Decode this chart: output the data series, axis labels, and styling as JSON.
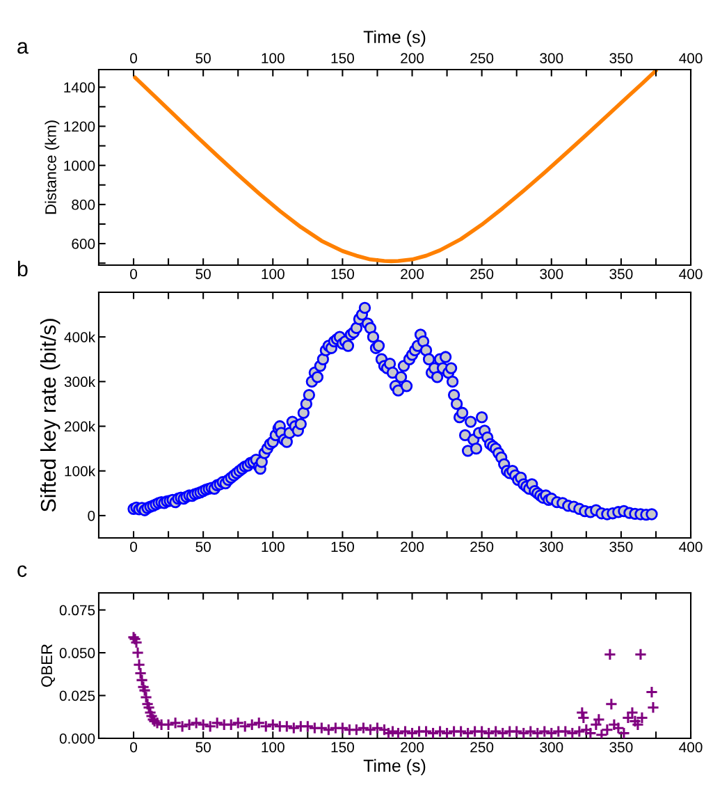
{
  "chart_data": [
    {
      "type": "line",
      "x2label": "Time (s)",
      "ylabel": "Distance (km)",
      "annotations": [
        "a"
      ],
      "xlim": [
        -25,
        400
      ],
      "xticks": [
        0,
        {
          "value": 25,
          "label": null
        },
        50,
        {
          "value": 75,
          "label": null
        },
        100,
        {
          "value": 125,
          "label": null
        },
        150,
        {
          "value": 175,
          "label": null
        },
        200,
        {
          "value": 225,
          "label": null
        },
        250,
        {
          "value": 275,
          "label": null
        },
        300,
        {
          "value": 325,
          "label": null
        },
        350,
        {
          "value": 375,
          "label": null
        },
        400
      ],
      "x2lim": [
        -25,
        400
      ],
      "x2ticks": [
        0,
        {
          "value": 25,
          "label": null
        },
        50,
        {
          "value": 75,
          "label": null
        },
        100,
        {
          "value": 125,
          "label": null
        },
        150,
        {
          "value": 175,
          "label": null
        },
        200,
        {
          "value": 225,
          "label": null
        },
        250,
        {
          "value": 275,
          "label": null
        },
        300,
        {
          "value": 325,
          "label": null
        },
        350,
        {
          "value": 375,
          "label": null
        },
        400
      ],
      "ylim": [
        490,
        1490
      ],
      "yticks": [
        {
          "value": 500,
          "label": null
        },
        600,
        {
          "value": 700,
          "label": null
        },
        800,
        {
          "value": 900,
          "label": null
        },
        1000,
        {
          "value": 1100,
          "label": null
        },
        1200,
        {
          "value": 1300,
          "label": null
        },
        1400
      ],
      "grid": false,
      "marker": "none",
      "line_style": "solid",
      "series": [
        {
          "color": "#ff8000",
          "x": [
            1,
            15,
            30,
            45,
            60,
            75,
            90,
            105,
            120,
            135,
            150,
            160,
            170,
            180,
            185,
            190,
            200,
            210,
            220,
            235,
            250,
            265,
            280,
            295,
            310,
            325,
            340,
            355,
            365,
            375
          ],
          "values": [
            1450,
            1355,
            1252,
            1150,
            1050,
            952,
            857,
            767,
            685,
            614,
            562,
            538,
            519,
            511,
            510,
            511,
            519,
            538,
            566,
            623,
            697,
            781,
            870,
            963,
            1059,
            1156,
            1254,
            1353,
            1418,
            1485
          ]
        }
      ]
    },
    {
      "type": "scatter",
      "ylabel": "Sifted key rate (bit/s)",
      "annotations": [
        "b"
      ],
      "xlim": [
        -25,
        400
      ],
      "xticks": [
        0,
        {
          "value": 25,
          "label": null
        },
        50,
        {
          "value": 75,
          "label": null
        },
        100,
        {
          "value": 125,
          "label": null
        },
        150,
        {
          "value": 175,
          "label": null
        },
        200,
        {
          "value": 225,
          "label": null
        },
        250,
        {
          "value": 275,
          "label": null
        },
        300,
        {
          "value": 325,
          "label": null
        },
        350,
        {
          "value": 375,
          "label": null
        },
        400
      ],
      "ylim": [
        -50000,
        500000
      ],
      "yticks": [
        {
          "value": 0,
          "label": "0"
        },
        {
          "value": 100000,
          "label": "100k"
        },
        {
          "value": 200000,
          "label": "200k"
        },
        {
          "value": 300000,
          "label": "300k"
        },
        {
          "value": 400000,
          "label": "400k"
        }
      ],
      "grid": false,
      "marker": "circle",
      "series": [
        {
          "color": "#0000ff",
          "x": [
            0,
            2,
            4,
            6,
            8,
            10,
            12,
            14,
            16,
            18,
            20,
            22,
            24,
            26,
            28,
            30,
            32,
            34,
            36,
            38,
            40,
            42,
            44,
            46,
            48,
            50,
            52,
            54,
            56,
            58,
            60,
            62,
            64,
            66,
            68,
            70,
            72,
            74,
            76,
            78,
            80,
            82,
            84,
            86,
            88,
            90,
            91,
            92,
            94,
            96,
            98,
            100,
            102,
            104,
            105,
            106,
            108,
            110,
            112,
            114,
            116,
            118,
            120,
            122,
            124,
            126,
            128,
            130,
            132,
            134,
            136,
            138,
            140,
            142,
            144,
            146,
            148,
            150,
            152,
            154,
            156,
            158,
            160,
            162,
            164,
            166,
            168,
            170,
            172,
            174,
            176,
            178,
            180,
            182,
            184,
            186,
            188,
            190,
            192,
            194,
            196,
            198,
            200,
            202,
            204,
            206,
            208,
            210,
            212,
            214,
            216,
            218,
            220,
            222,
            224,
            226,
            228,
            229,
            230,
            232,
            234,
            236,
            238,
            240,
            242,
            244,
            246,
            248,
            250,
            252,
            254,
            256,
            258,
            260,
            262,
            264,
            266,
            268,
            270,
            272,
            274,
            276,
            278,
            280,
            282,
            284,
            286,
            288,
            290,
            292,
            294,
            296,
            298,
            300,
            304,
            308,
            312,
            316,
            320,
            324,
            328,
            332,
            336,
            340,
            344,
            348,
            352,
            356,
            360,
            364,
            368,
            372
          ],
          "values": [
            15000,
            18000,
            14000,
            17000,
            12000,
            17000,
            20000,
            22000,
            25000,
            28000,
            30000,
            28000,
            32000,
            33000,
            35000,
            30000,
            38000,
            40000,
            38000,
            42000,
            45000,
            44000,
            48000,
            50000,
            52000,
            55000,
            58000,
            60000,
            62000,
            60000,
            68000,
            70000,
            75000,
            72000,
            80000,
            85000,
            90000,
            95000,
            100000,
            105000,
            110000,
            112000,
            118000,
            120000,
            125000,
            110000,
            105000,
            120000,
            140000,
            150000,
            160000,
            165000,
            180000,
            195000,
            200000,
            185000,
            170000,
            165000,
            185000,
            210000,
            200000,
            190000,
            205000,
            230000,
            250000,
            270000,
            300000,
            320000,
            310000,
            335000,
            350000,
            370000,
            380000,
            375000,
            390000,
            395000,
            400000,
            385000,
            390000,
            380000,
            405000,
            410000,
            420000,
            440000,
            450000,
            465000,
            430000,
            420000,
            400000,
            375000,
            380000,
            350000,
            335000,
            330000,
            340000,
            320000,
            290000,
            280000,
            310000,
            335000,
            290000,
            350000,
            360000,
            370000,
            380000,
            405000,
            390000,
            370000,
            350000,
            320000,
            330000,
            310000,
            350000,
            330000,
            355000,
            320000,
            330000,
            300000,
            270000,
            250000,
            220000,
            230000,
            180000,
            145000,
            210000,
            170000,
            150000,
            185000,
            220000,
            190000,
            175000,
            160000,
            155000,
            150000,
            140000,
            130000,
            115000,
            100000,
            95000,
            100000,
            90000,
            80000,
            85000,
            70000,
            65000,
            60000,
            70000,
            55000,
            50000,
            45000,
            40000,
            45000,
            35000,
            38000,
            30000,
            28000,
            22000,
            20000,
            15000,
            10000,
            8000,
            12000,
            5000,
            3000,
            5000,
            8000,
            10000,
            6000,
            4000,
            3000,
            2000,
            3000
          ]
        }
      ]
    },
    {
      "type": "scatter",
      "xlabel": "Time (s)",
      "ylabel": "QBER",
      "annotations": [
        "c"
      ],
      "xlim": [
        -25,
        400
      ],
      "xticks": [
        0,
        {
          "value": 25,
          "label": null
        },
        50,
        {
          "value": 75,
          "label": null
        },
        100,
        {
          "value": 125,
          "label": null
        },
        150,
        {
          "value": 175,
          "label": null
        },
        200,
        {
          "value": 225,
          "label": null
        },
        250,
        {
          "value": 275,
          "label": null
        },
        300,
        {
          "value": 325,
          "label": null
        },
        350,
        {
          "value": 375,
          "label": null
        },
        400
      ],
      "ylim": [
        0,
        0.085
      ],
      "yticks": [
        {
          "value": 0,
          "label": "0.000"
        },
        {
          "value": 0.025,
          "label": "0.025"
        },
        {
          "value": 0.05,
          "label": "0.050"
        },
        {
          "value": 0.075,
          "label": "0.075"
        }
      ],
      "grid": false,
      "marker": "cross",
      "series": [
        {
          "color": "#800080",
          "x": [
            0,
            1,
            2,
            3,
            4,
            5,
            6,
            7,
            8,
            9,
            10,
            11,
            12,
            13,
            14,
            15,
            17,
            20,
            25,
            30,
            35,
            40,
            45,
            50,
            55,
            60,
            65,
            70,
            75,
            80,
            85,
            90,
            95,
            100,
            105,
            110,
            115,
            120,
            125,
            130,
            135,
            140,
            145,
            150,
            155,
            160,
            165,
            170,
            175,
            180,
            183,
            186,
            190,
            195,
            200,
            205,
            210,
            215,
            220,
            225,
            230,
            235,
            240,
            245,
            250,
            255,
            260,
            265,
            270,
            275,
            280,
            285,
            290,
            295,
            300,
            305,
            310,
            315,
            320,
            322,
            323,
            325,
            328,
            332,
            334,
            336,
            340,
            342,
            343,
            345,
            348,
            352,
            355,
            358,
            360,
            362,
            364,
            365,
            372,
            373
          ],
          "values": [
            0.059,
            0.058,
            0.056,
            0.05,
            0.043,
            0.038,
            0.034,
            0.03,
            0.028,
            0.024,
            0.02,
            0.018,
            0.015,
            0.013,
            0.011,
            0.01,
            0.009,
            0.008,
            0.008,
            0.009,
            0.007,
            0.008,
            0.009,
            0.008,
            0.007,
            0.009,
            0.008,
            0.008,
            0.009,
            0.007,
            0.008,
            0.009,
            0.007,
            0.008,
            0.007,
            0.007,
            0.006,
            0.007,
            0.007,
            0.006,
            0.006,
            0.005,
            0.006,
            0.006,
            0.005,
            0.005,
            0.006,
            0.005,
            0.006,
            0.005,
            0.003,
            0.004,
            0.003,
            0.004,
            0.003,
            0.004,
            0.004,
            0.003,
            0.004,
            0.003,
            0.004,
            0.004,
            0.003,
            0.004,
            0.004,
            0.003,
            0.004,
            0.003,
            0.004,
            0.004,
            0.003,
            0.004,
            0.003,
            0.004,
            0.003,
            0.004,
            0.004,
            0.003,
            0.004,
            0.015,
            0.012,
            0.005,
            0.003,
            0.008,
            0.011,
            0.002,
            0.005,
            0.049,
            0.02,
            0.008,
            0.006,
            0.003,
            0.012,
            0.015,
            0.01,
            0.008,
            0.049,
            0.012,
            0.027,
            0.018
          ]
        }
      ]
    }
  ]
}
